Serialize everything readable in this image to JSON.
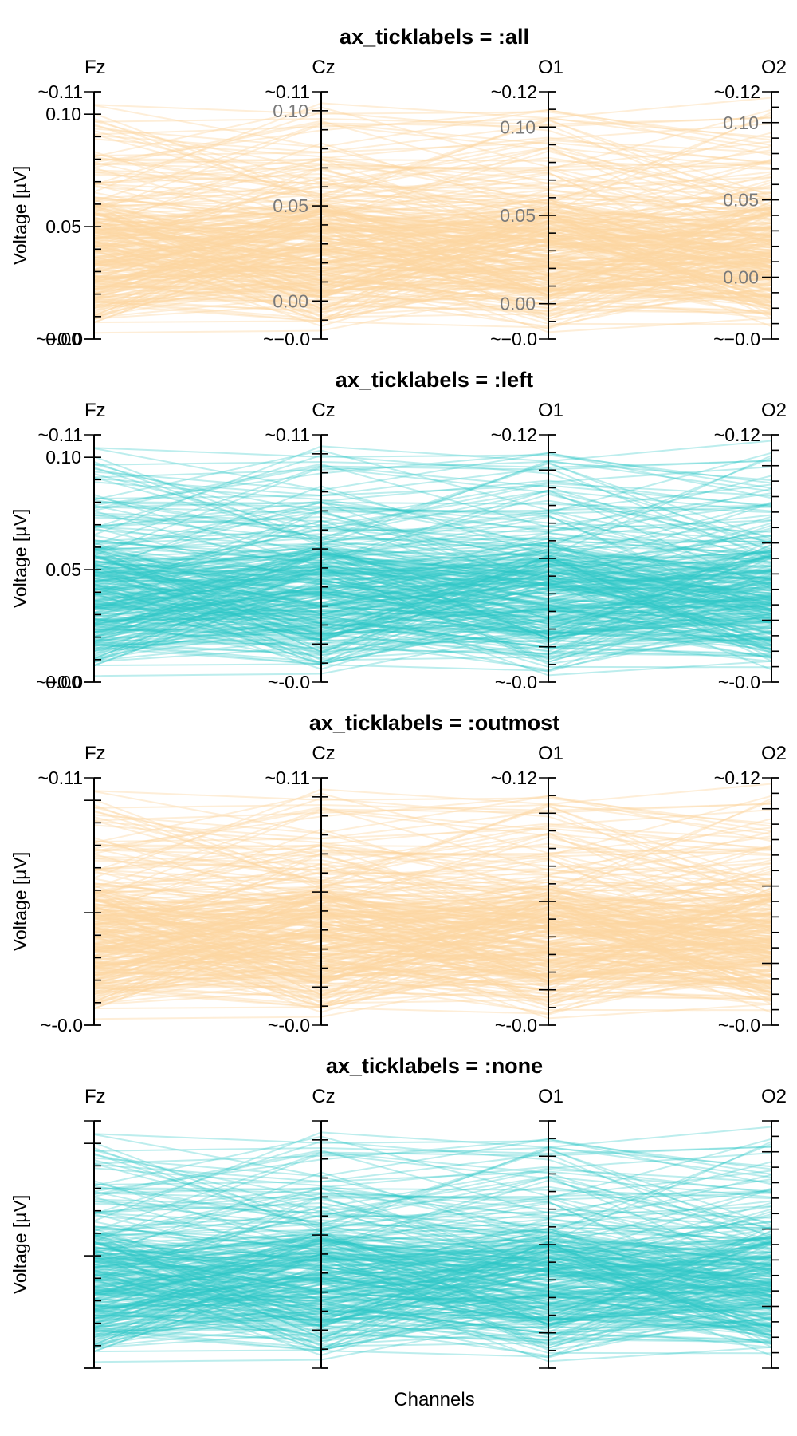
{
  "chart_data": {
    "type": "parallel-coordinates",
    "xlabel": "Channels",
    "ylabel": "Voltage [µV]",
    "channels": [
      "Fz",
      "Cz",
      "O1",
      "O2"
    ],
    "colors": {
      "orange": "#fdd6a2",
      "teal": "#2ec8c8"
    },
    "axis_ranges": {
      "Fz": [
        -0.0,
        0.11
      ],
      "Cz": [
        -0.02,
        0.11
      ],
      "O1": [
        -0.02,
        0.12
      ],
      "O2": [
        -0.04,
        0.12
      ]
    },
    "axis_ticks": {
      "Fz": [
        0.0,
        0.05,
        0.1
      ],
      "Cz": [
        0.0,
        0.05,
        0.1
      ],
      "O1": [
        0.0,
        0.05,
        0.1
      ],
      "O2": [
        0.0,
        0.05,
        0.1
      ]
    },
    "n_lines": 300,
    "panels": [
      {
        "title": "ax_ticklabels = :all",
        "color": "orange",
        "axes": [
          {
            "channel": "Fz",
            "min_label": "~−0.0",
            "max_label": "~0.11",
            "ticks": [
              "0.00",
              "0.05",
              "0.10"
            ]
          },
          {
            "channel": "Cz",
            "min_label": "~−0.0",
            "max_label": "~0.11",
            "ticks": [
              "0.00",
              "0.05",
              "0.10"
            ]
          },
          {
            "channel": "O1",
            "min_label": "~−0.0",
            "max_label": "~0.12",
            "ticks": [
              "0.00",
              "0.05",
              "0.10"
            ]
          },
          {
            "channel": "O2",
            "min_label": "~−0.0",
            "max_label": "~0.12",
            "ticks": [
              "0.00",
              "0.05",
              "0.10"
            ]
          }
        ]
      },
      {
        "title": "ax_ticklabels = :left",
        "color": "teal",
        "axes": [
          {
            "channel": "Fz",
            "min_label": "~−0.0",
            "max_label": "~0.11",
            "ticks": [
              "0.00",
              "0.05",
              "0.10"
            ]
          },
          {
            "channel": "Cz",
            "min_label": "~-0.0",
            "max_label": "~0.11",
            "ticks": []
          },
          {
            "channel": "O1",
            "min_label": "~-0.0",
            "max_label": "~0.12",
            "ticks": []
          },
          {
            "channel": "O2",
            "min_label": "~-0.0",
            "max_label": "~0.12",
            "ticks": []
          }
        ]
      },
      {
        "title": "ax_ticklabels = :outmost",
        "color": "orange",
        "axes": [
          {
            "channel": "Fz",
            "min_label": "~-0.0",
            "max_label": "~0.11",
            "ticks": []
          },
          {
            "channel": "Cz",
            "min_label": "~-0.0",
            "max_label": "~0.11",
            "ticks": []
          },
          {
            "channel": "O1",
            "min_label": "~-0.0",
            "max_label": "~0.12",
            "ticks": []
          },
          {
            "channel": "O2",
            "min_label": "~-0.0",
            "max_label": "~0.12",
            "ticks": []
          }
        ]
      },
      {
        "title": "ax_ticklabels = :none",
        "color": "teal",
        "axes": [
          {
            "channel": "Fz",
            "min_label": "",
            "max_label": "",
            "ticks": []
          },
          {
            "channel": "Cz",
            "min_label": "",
            "max_label": "",
            "ticks": []
          },
          {
            "channel": "O1",
            "min_label": "",
            "max_label": "",
            "ticks": []
          },
          {
            "channel": "O2",
            "min_label": "",
            "max_label": "",
            "ticks": []
          }
        ]
      }
    ]
  }
}
